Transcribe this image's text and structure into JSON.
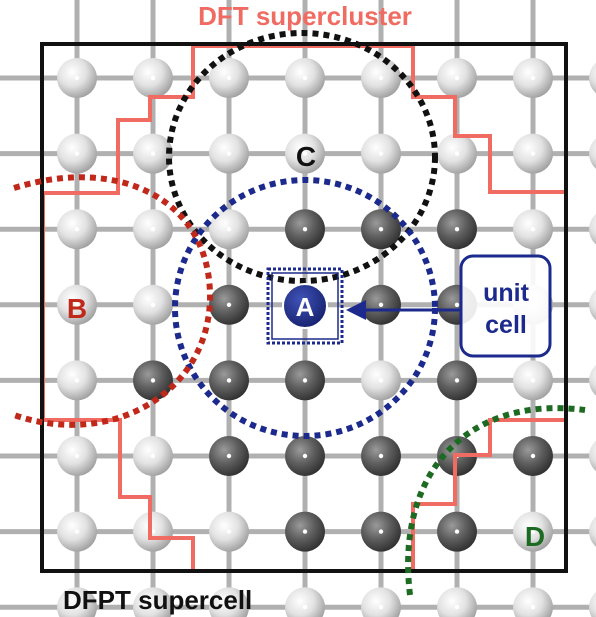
{
  "title": "DFT supercluster",
  "footer": "DFPT supercell",
  "unit_cell_box": {
    "line1": "unit",
    "line2": "cell"
  },
  "region_labels": {
    "A": "A",
    "B": "B",
    "C": "C",
    "D": "D"
  },
  "lattice": {
    "columns": 8,
    "rows": 8
  },
  "dark_atoms": [
    [
      3,
      2
    ],
    [
      4,
      2
    ],
    [
      5,
      2
    ],
    [
      2,
      3
    ],
    [
      3,
      3
    ],
    [
      4,
      3
    ],
    [
      5,
      3
    ],
    [
      1,
      4
    ],
    [
      2,
      4
    ],
    [
      3,
      4
    ],
    [
      5,
      4
    ],
    [
      2,
      5
    ],
    [
      3,
      5
    ],
    [
      4,
      5
    ],
    [
      5,
      5
    ],
    [
      6,
      5
    ],
    [
      3,
      6
    ],
    [
      4,
      6
    ],
    [
      5,
      6
    ]
  ],
  "colors": {
    "supercluster_outline": "#f06b62",
    "supercell_outline": "#111111",
    "circle_A": "#1b2a8c",
    "circle_B": "#c0281a",
    "circle_C": "#111111",
    "circle_D": "#1d6b22",
    "unit_cell": "#1b2a8c",
    "light_atom": "#dadada",
    "dark_atom": "#5a5a5a",
    "bond": "#b0b0b0"
  }
}
